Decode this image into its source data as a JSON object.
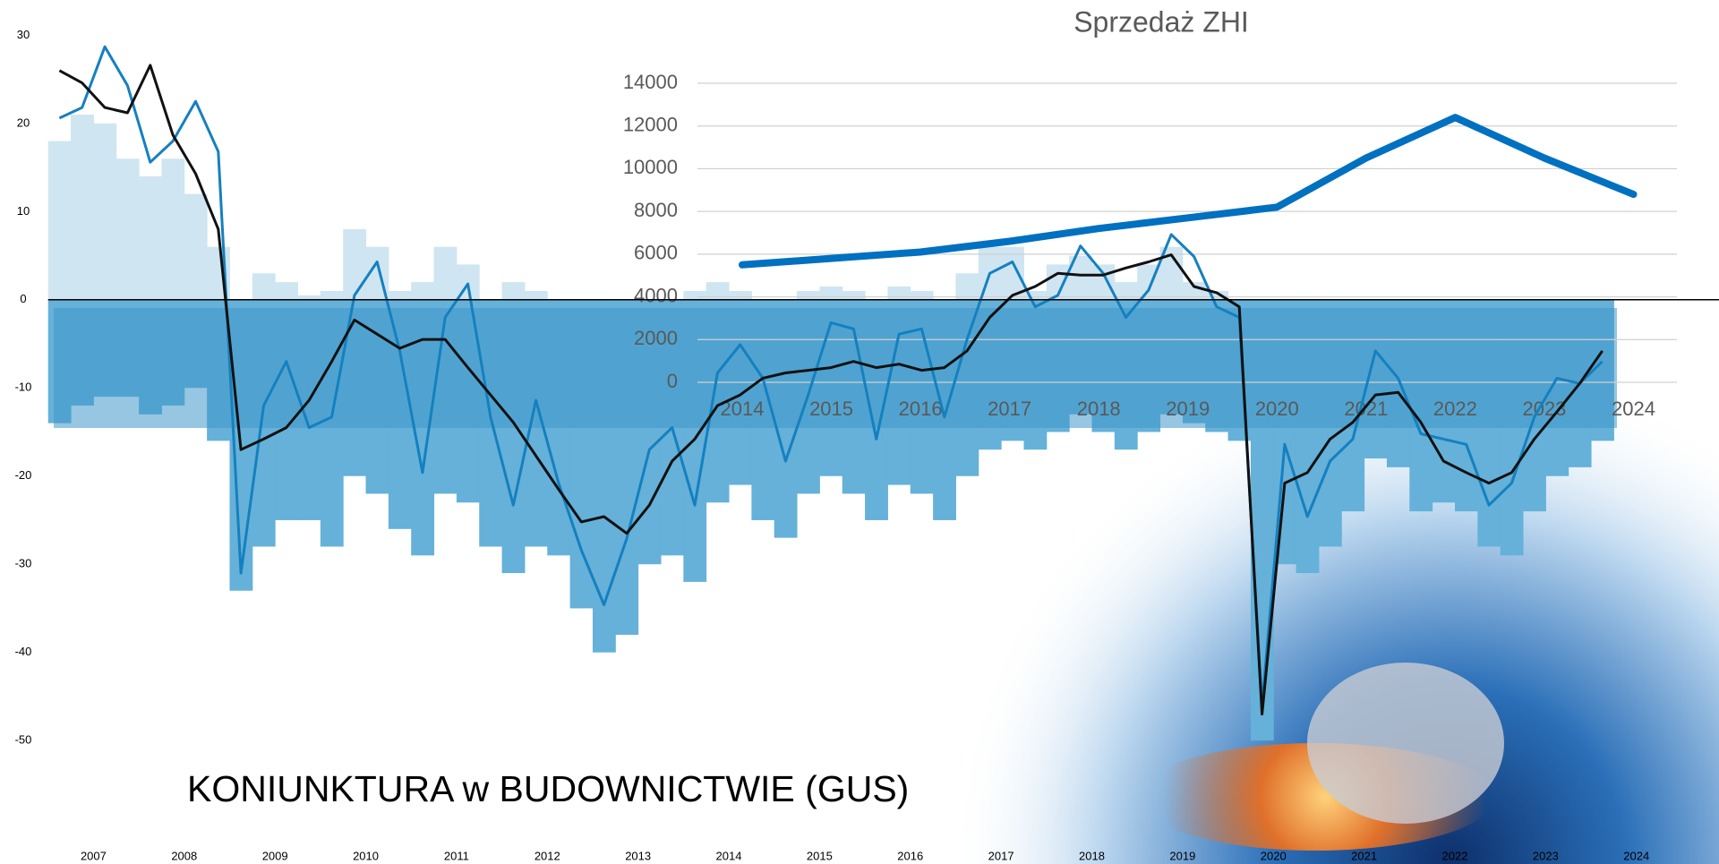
{
  "chart_data": [
    {
      "type": "combo",
      "title": "KONIUNKTURA w BUDOWNICTWIE (GUS)",
      "x": [
        2007.125,
        2007.375,
        2007.625,
        2007.875,
        2008.125,
        2008.375,
        2008.625,
        2008.875,
        2009.125,
        2009.375,
        2009.625,
        2009.875,
        2010.125,
        2010.375,
        2010.625,
        2010.875,
        2011.125,
        2011.375,
        2011.625,
        2011.875,
        2012.125,
        2012.375,
        2012.625,
        2012.875,
        2013.125,
        2013.375,
        2013.625,
        2013.875,
        2014.125,
        2014.375,
        2014.625,
        2014.875,
        2015.125,
        2015.375,
        2015.625,
        2015.875,
        2016.125,
        2016.375,
        2016.625,
        2016.875,
        2017.125,
        2017.375,
        2017.625,
        2017.875,
        2018.125,
        2018.375,
        2018.625,
        2018.875,
        2019.125,
        2019.375,
        2019.625,
        2019.875,
        2020.125,
        2020.375,
        2020.625,
        2020.875,
        2021.125,
        2021.375,
        2021.625,
        2021.875,
        2022.125,
        2022.375,
        2022.625,
        2022.875,
        2023.125,
        2023.375,
        2023.625,
        2023.875,
        2024.125
      ],
      "series": [
        {
          "type": "bar",
          "color": "#cfe5f1",
          "values": [
            18,
            21,
            20,
            16,
            14,
            16,
            12,
            6,
            0,
            3,
            2,
            0.5,
            1,
            8,
            6,
            1,
            2,
            6,
            4,
            0,
            2,
            1,
            0,
            0,
            0,
            0,
            0,
            0,
            1,
            2,
            1,
            0,
            0,
            1,
            1.5,
            1,
            0,
            1.5,
            1,
            0,
            3,
            6,
            6,
            1,
            4,
            5,
            4,
            2,
            4,
            6,
            2,
            1,
            0,
            0,
            0,
            0,
            0,
            0,
            0,
            0,
            0,
            0,
            0,
            0,
            0,
            0,
            0,
            0,
            0
          ]
        },
        {
          "type": "bar",
          "color": "#65b1d9",
          "values": [
            -14,
            -12,
            -11,
            -11,
            -13,
            -12,
            -10,
            -16,
            -33,
            -28,
            -25,
            -25,
            -28,
            -20,
            -22,
            -26,
            -29,
            -22,
            -23,
            -28,
            -31,
            -28,
            -29,
            -35,
            -40,
            -38,
            -30,
            -29,
            -32,
            -23,
            -21,
            -25,
            -27,
            -22,
            -20,
            -22,
            -25,
            -21,
            -22,
            -25,
            -20,
            -17,
            -16,
            -17,
            -15,
            -13,
            -15,
            -17,
            -15,
            -13,
            -14,
            -15,
            -16,
            -50,
            -30,
            -31,
            -28,
            -24,
            -18,
            -19,
            -24,
            -23,
            -24,
            -28,
            -29,
            -24,
            -20,
            -19,
            -16
          ]
        },
        {
          "type": "line",
          "color": "#1580bf",
          "values": [
            20.6,
            21.8,
            28.7,
            24.3,
            15.6,
            18,
            22.5,
            16.8,
            -31,
            -12,
            -7,
            -14.5,
            -13.3,
            0.5,
            4.3,
            -5.8,
            -19.6,
            -2,
            1.8,
            -13.3,
            -23.3,
            -11.4,
            -20.8,
            -28.4,
            -34.6,
            -27.1,
            -17,
            -14.5,
            -23.3,
            -8.3,
            -5.1,
            -8.9,
            -18.3,
            -10.8,
            -2.6,
            -3.3,
            -15.8,
            -3.9,
            -3.3,
            -13.3,
            -4.5,
            3,
            4.3,
            -0.8,
            0.5,
            6.1,
            3,
            -2,
            1.1,
            7.4,
            4.9,
            -0.8,
            -2,
            -46,
            -16.4,
            -24.6,
            -18.3,
            -15.8,
            -5.8,
            -8.9,
            -15.2,
            -15.8,
            -16.4,
            -23.3,
            -20.8,
            -13.3,
            -8.9,
            -9.5,
            -7
          ]
        },
        {
          "type": "line",
          "color": "#111111",
          "values": [
            26,
            24.6,
            21.8,
            21.2,
            26.6,
            18.7,
            14.3,
            8,
            -17,
            -15.8,
            -14.5,
            -11.4,
            -7,
            -2.3,
            -3.9,
            -5.5,
            -4.5,
            -4.5,
            -7.7,
            -10.8,
            -13.9,
            -17.7,
            -21.5,
            -25.2,
            -24.6,
            -26.5,
            -23.3,
            -18.3,
            -15.8,
            -12,
            -10.8,
            -8.9,
            -8.3,
            -8,
            -7.7,
            -7,
            -7.7,
            -7.3,
            -8,
            -7.7,
            -5.8,
            -2,
            0.5,
            1.5,
            3,
            2.8,
            2.8,
            3.6,
            4.3,
            5.1,
            1.5,
            0.8,
            -0.8,
            -47,
            -20.8,
            -19.6,
            -15.8,
            -13.9,
            -10.8,
            -10.5,
            -13.9,
            -18.3,
            -19.6,
            -20.8,
            -19.6,
            -15.8,
            -12.7,
            -9.5,
            -5.8
          ]
        }
      ],
      "xlim": [
        2006.47,
        2025.41
      ],
      "xticks": [
        {
          "value": 2007.5,
          "label": "2007"
        },
        {
          "value": 2008.5,
          "label": "2008"
        },
        {
          "value": 2009.5,
          "label": "2009"
        },
        {
          "value": 2010.5,
          "label": "2010"
        },
        {
          "value": 2011.5,
          "label": "2011"
        },
        {
          "value": 2012.5,
          "label": "2012"
        },
        {
          "value": 2013.5,
          "label": "2013"
        },
        {
          "value": 2014.5,
          "label": "2014"
        },
        {
          "value": 2015.5,
          "label": "2015"
        },
        {
          "value": 2016.5,
          "label": "2016"
        },
        {
          "value": 2017.5,
          "label": "2017"
        },
        {
          "value": 2018.5,
          "label": "2018"
        },
        {
          "value": 2019.5,
          "label": "2019"
        },
        {
          "value": 2020.5,
          "label": "2020"
        },
        {
          "value": 2021.5,
          "label": "2021"
        },
        {
          "value": 2022.5,
          "label": "2022"
        },
        {
          "value": 2023.5,
          "label": "2023"
        },
        {
          "value": 2024.5,
          "label": "2024"
        }
      ],
      "ylim": [
        -64,
        34
      ],
      "yticks": [
        30,
        20,
        10,
        0,
        -10,
        -20,
        -30,
        -40,
        -50
      ]
    },
    {
      "type": "line",
      "title": "Sprzedaż ZHI",
      "categories": [
        "2014",
        "2015",
        "2016",
        "2017",
        "2018",
        "2019",
        "2020",
        "2021",
        "2022",
        "2023",
        "2024"
      ],
      "values": [
        5500,
        5800,
        6100,
        6600,
        7200,
        7700,
        8200,
        10500,
        12400,
        10500,
        8800
      ],
      "color": "#0070c0",
      "ylim": [
        0,
        14000
      ],
      "yticks": [
        0,
        2000,
        4000,
        6000,
        8000,
        10000,
        12000,
        14000
      ],
      "grid": true
    }
  ]
}
